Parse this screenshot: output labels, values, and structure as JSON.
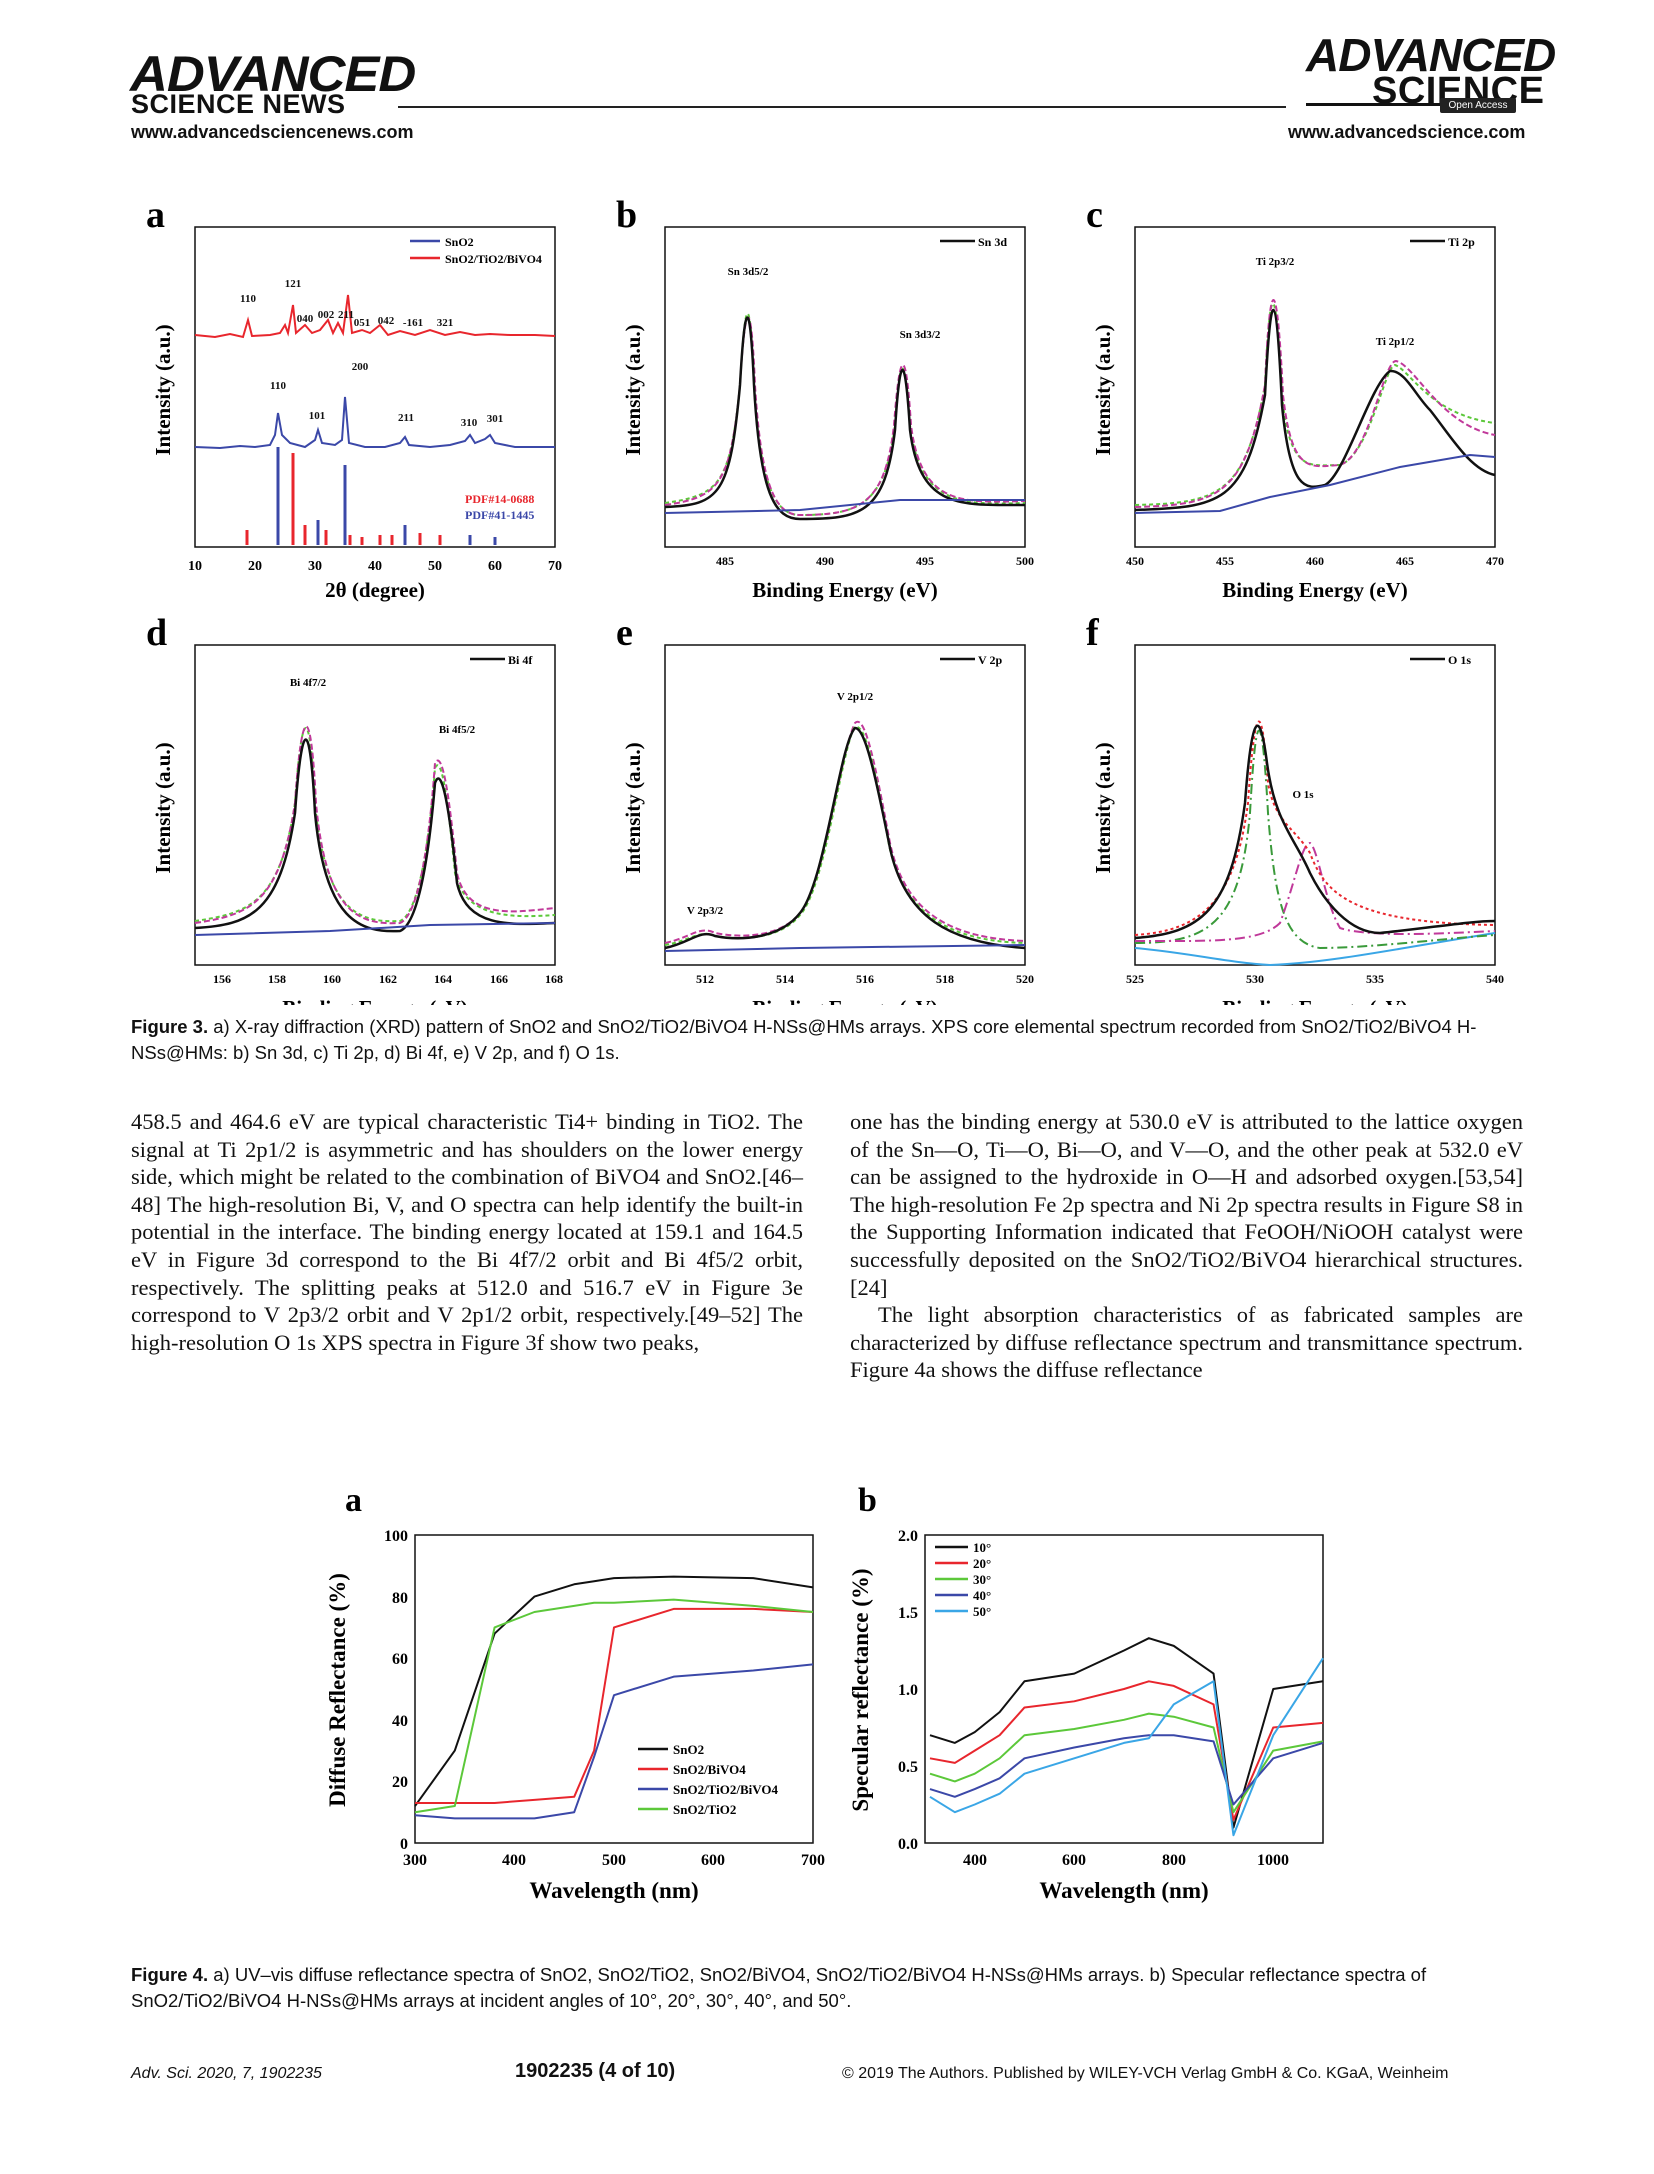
{
  "header": {
    "left_title": "ADVANCED",
    "left_subtitle": "SCIENCE NEWS",
    "left_url": "www.advancedsciencenews.com",
    "right_title": "ADVANCED",
    "right_subtitle": "SCIENCE",
    "right_badge": "Open Access",
    "right_url": "www.advancedscience.com"
  },
  "figure3": {
    "panels": {
      "a": {
        "letter": "a",
        "ylabel": "Intensity (a.u.)",
        "xlabel": "2θ (degree)",
        "xticks": [
          "10",
          "20",
          "30",
          "40",
          "50",
          "60",
          "70"
        ],
        "legend": [
          "SnO2",
          "SnO2/TiO2/BiVO4"
        ],
        "peaks_top": [
          "110",
          "121",
          "040",
          "002",
          "211",
          "051",
          "042",
          "-161",
          "321"
        ],
        "peaks_bottom": [
          "110",
          "200",
          "101",
          "211",
          "310",
          "301"
        ],
        "pdf": [
          "PDF#14-0688",
          "PDF#41-1445"
        ]
      },
      "b": {
        "letter": "b",
        "ylabel": "Intensity (a.u.)",
        "xlabel": "Binding Energy (eV)",
        "xticks": [
          "485",
          "490",
          "495",
          "500"
        ],
        "legend": "Sn 3d",
        "peaks": [
          "Sn 3d5/2",
          "Sn 3d3/2"
        ]
      },
      "c": {
        "letter": "c",
        "ylabel": "Intensity (a.u.)",
        "xlabel": "Binding Energy (eV)",
        "xticks": [
          "450",
          "455",
          "460",
          "465",
          "470"
        ],
        "legend": "Ti 2p",
        "peaks": [
          "Ti 2p3/2",
          "Ti 2p1/2"
        ]
      },
      "d": {
        "letter": "d",
        "ylabel": "Intensity (a.u.)",
        "xlabel": "Binding Energy (eV)",
        "xticks": [
          "156",
          "158",
          "160",
          "162",
          "164",
          "166",
          "168"
        ],
        "legend": "Bi 4f",
        "peaks": [
          "Bi 4f7/2",
          "Bi 4f5/2"
        ]
      },
      "e": {
        "letter": "e",
        "ylabel": "Intensity (a.u.)",
        "xlabel": "Binding Energy (eV)",
        "xticks": [
          "512",
          "514",
          "516",
          "518",
          "520"
        ],
        "legend": "V 2p",
        "peaks": [
          "V 2p1/2",
          "V 2p3/2"
        ]
      },
      "f": {
        "letter": "f",
        "ylabel": "Intensity (a.u.)",
        "xlabel": "Binding Energy (eV)",
        "xticks": [
          "525",
          "530",
          "535",
          "540"
        ],
        "legend": "O 1s",
        "peaks": [
          "O 1s"
        ]
      }
    }
  },
  "figure4": {
    "a": {
      "letter": "a",
      "ylabel": "Diffuse Reflectance (%)",
      "xlabel": "Wavelength (nm)",
      "xticks": [
        "300",
        "400",
        "500",
        "600",
        "700"
      ],
      "yticks": [
        "0",
        "20",
        "40",
        "60",
        "80",
        "100"
      ],
      "legend": [
        "SnO2",
        "SnO2/BiVO4",
        "SnO2/TiO2/BiVO4",
        "SnO2/TiO2"
      ]
    },
    "b": {
      "letter": "b",
      "ylabel": "Specular reflectance (%)",
      "xlabel": "Wavelength (nm)",
      "xticks": [
        "400",
        "600",
        "800",
        "1000"
      ],
      "yticks": [
        "0.0",
        "0.5",
        "1.0",
        "1.5",
        "2.0"
      ],
      "legend": [
        "10°",
        "20°",
        "30°",
        "40°",
        "50°"
      ]
    }
  },
  "chart_data": [
    {
      "type": "line",
      "panel": "Figure 3a",
      "xlabel": "2θ (degree)",
      "ylabel": "Intensity (a.u.)",
      "xlim": [
        10,
        70
      ],
      "series": [
        {
          "name": "SnO2/TiO2/BiVO4",
          "peaks_x": [
            18.9,
            28.9,
            30.5,
            34.5,
            35.2,
            39.8,
            42.5,
            46.7,
            50.3,
            53.3
          ]
        },
        {
          "name": "SnO2",
          "peaks_x": [
            26.6,
            33.9,
            37.9,
            51.8,
            61.9,
            65.9
          ]
        }
      ]
    },
    {
      "type": "line",
      "panel": "Figure 3b",
      "xlabel": "Binding Energy (eV)",
      "ylabel": "Intensity (a.u.)",
      "xlim": [
        482,
        500
      ],
      "series": [
        {
          "name": "Sn 3d",
          "peaks_x": [
            486.7,
            495.1
          ]
        }
      ]
    },
    {
      "type": "line",
      "panel": "Figure 3c",
      "xlabel": "Binding Energy (eV)",
      "ylabel": "Intensity (a.u.)",
      "xlim": [
        450,
        470
      ],
      "series": [
        {
          "name": "Ti 2p",
          "peaks_x": [
            458.5,
            464.6
          ]
        }
      ]
    },
    {
      "type": "line",
      "panel": "Figure 3d",
      "xlabel": "Binding Energy (eV)",
      "ylabel": "Intensity (a.u.)",
      "xlim": [
        155,
        168
      ],
      "series": [
        {
          "name": "Bi 4f",
          "peaks_x": [
            159.1,
            164.5
          ]
        }
      ]
    },
    {
      "type": "line",
      "panel": "Figure 3e",
      "xlabel": "Binding Energy (eV)",
      "ylabel": "Intensity (a.u.)",
      "xlim": [
        511,
        520
      ],
      "series": [
        {
          "name": "V 2p",
          "peaks_x": [
            512.0,
            516.7
          ]
        }
      ]
    },
    {
      "type": "line",
      "panel": "Figure 3f",
      "xlabel": "Binding Energy (eV)",
      "ylabel": "Intensity (a.u.)",
      "xlim": [
        525,
        540
      ],
      "series": [
        {
          "name": "O 1s",
          "peaks_x": [
            530.0,
            532.0
          ]
        }
      ]
    },
    {
      "type": "line",
      "panel": "Figure 4a",
      "xlabel": "Wavelength (nm)",
      "ylabel": "Diffuse Reflectance (%)",
      "xlim": [
        300,
        700
      ],
      "ylim": [
        0,
        100
      ],
      "x": [
        300,
        340,
        380,
        420,
        460,
        480,
        500,
        560,
        640,
        700
      ],
      "series": [
        {
          "name": "SnO2",
          "values": [
            12,
            30,
            68,
            80,
            84,
            85,
            86,
            86.5,
            86,
            83
          ]
        },
        {
          "name": "SnO2/BiVO4",
          "values": [
            13,
            13,
            13,
            14,
            15,
            30,
            70,
            76,
            76,
            75
          ]
        },
        {
          "name": "SnO2/TiO2/BiVO4",
          "values": [
            9,
            8,
            8,
            8,
            10,
            28,
            48,
            54,
            56,
            58
          ]
        },
        {
          "name": "SnO2/TiO2",
          "values": [
            10,
            12,
            70,
            75,
            77,
            78,
            78,
            79,
            77,
            75
          ]
        }
      ]
    },
    {
      "type": "line",
      "panel": "Figure 4b",
      "xlabel": "Wavelength (nm)",
      "ylabel": "Specular reflectance (%)",
      "xlim": [
        300,
        1100
      ],
      "ylim": [
        0,
        2.0
      ],
      "x": [
        310,
        360,
        400,
        450,
        500,
        600,
        700,
        750,
        800,
        880,
        920,
        1000,
        1100
      ],
      "series": [
        {
          "name": "10°",
          "values": [
            0.7,
            0.65,
            0.72,
            0.85,
            1.05,
            1.1,
            1.25,
            1.33,
            1.28,
            1.1,
            0.1,
            1.0,
            1.05
          ]
        },
        {
          "name": "20°",
          "values": [
            0.55,
            0.52,
            0.6,
            0.7,
            0.88,
            0.92,
            1.0,
            1.05,
            1.02,
            0.9,
            0.15,
            0.75,
            0.78
          ]
        },
        {
          "name": "30°",
          "values": [
            0.45,
            0.4,
            0.45,
            0.55,
            0.7,
            0.74,
            0.8,
            0.84,
            0.82,
            0.75,
            0.2,
            0.6,
            0.66
          ]
        },
        {
          "name": "40°",
          "values": [
            0.35,
            0.3,
            0.35,
            0.42,
            0.55,
            0.62,
            0.68,
            0.7,
            0.7,
            0.66,
            0.25,
            0.55,
            0.65
          ]
        },
        {
          "name": "50°",
          "values": [
            0.3,
            0.2,
            0.25,
            0.32,
            0.45,
            0.55,
            0.65,
            0.68,
            0.9,
            1.05,
            0.05,
            0.7,
            1.2
          ]
        }
      ]
    }
  ],
  "captions": {
    "fig3_label": "Figure 3.",
    "fig3_text": " a) X-ray diffraction (XRD) pattern of SnO2 and SnO2/TiO2/BiVO4 H-NSs@HMs arrays. XPS core elemental spectrum recorded from SnO2/TiO2/BiVO4 H-NSs@HMs: b) Sn 3d, c) Ti 2p, d) Bi 4f, e) V 2p, and f) O 1s.",
    "fig4_label": "Figure 4.",
    "fig4_text": " a) UV–vis diffuse reflectance spectra of SnO2, SnO2/TiO2, SnO2/BiVO4, SnO2/TiO2/BiVO4 H-NSs@HMs arrays. b) Specular reflectance spectra of SnO2/TiO2/BiVO4 H-NSs@HMs arrays at incident angles of 10°, 20°, 30°, 40°, and 50°."
  },
  "body": {
    "left": "458.5 and 464.6 eV are typical characteristic Ti4+ binding in TiO2. The signal at Ti 2p1/2 is asymmetric and has shoulders on the lower energy side, which might be related to the combination of BiVO4 and SnO2.[46–48] The high-resolution Bi, V, and O spectra can help identify the built-in potential in the interface. The binding energy located at 159.1 and 164.5 eV in Figure 3d correspond to the Bi 4f7/2 orbit and Bi 4f5/2 orbit, respectively. The splitting peaks at 512.0 and 516.7 eV in Figure 3e correspond to V 2p3/2 orbit and V 2p1/2 orbit, respectively.[49–52] The high-resolution O 1s XPS spectra in Figure 3f show two peaks,",
    "right_p1": "one has the binding energy at 530.0 eV is attributed to the lattice oxygen of the Sn—O, Ti—O, Bi—O, and V—O, and the other peak at 532.0 eV can be assigned to the hydroxide in O—H and adsorbed oxygen.[53,54] The high-resolution Fe 2p spectra and Ni 2p spectra results in Figure S8 in the Supporting Information indicated that FeOOH/NiOOH catalyst were successfully deposited on the SnO2/TiO2/BiVO4 hierarchical structures.[24]",
    "right_p2": "The light absorption characteristics of as fabricated samples are characterized by diffuse reflectance spectrum and transmittance spectrum. Figure 4a shows the diffuse reflectance"
  },
  "footer": {
    "journal": "Adv. Sci. 2020, 7, 1902235",
    "page": "1902235  (4 of 10)",
    "copyright": "© 2019 The Authors. Published by WILEY-VCH Verlag GmbH & Co. KGaA, Weinheim"
  },
  "colors": {
    "black": "#111111",
    "red": "#e8262d",
    "blue": "#3b48a8",
    "green": "#5cc83a",
    "cyan": "#3aa6e6",
    "magenta": "#c0399a",
    "dkgreen": "#3a9a3a"
  }
}
